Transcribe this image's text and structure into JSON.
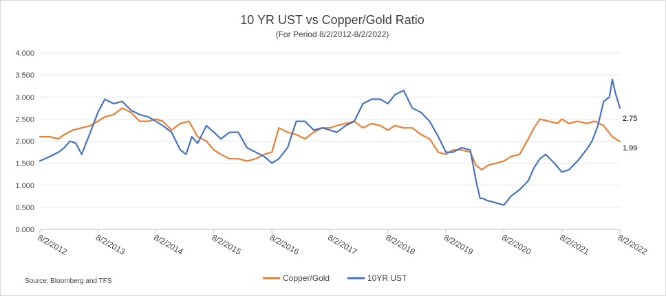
{
  "chart_data": {
    "type": "line",
    "title": "10 YR UST vs Copper/Gold Ratio",
    "subtitle": "(For Period 8/2/2012-8/2/2022)",
    "xlabel": "",
    "ylabel": "",
    "ylim": [
      0,
      4
    ],
    "y_ticks": [
      "0.000",
      "0.500",
      "1.000",
      "1.500",
      "2.000",
      "2.500",
      "3.000",
      "3.500",
      "4.000"
    ],
    "x_ticks": [
      "8/2/2012",
      "8/2/2013",
      "8/2/2014",
      "8/2/2015",
      "8/2/2016",
      "8/2/2017",
      "8/2/2018",
      "8/2/2019",
      "8/2/2020",
      "8/2/2021",
      "8/2/2022"
    ],
    "grid": "horizontal",
    "legend_position": "bottom",
    "source": "Source: Bloomberg and TFS",
    "end_labels": {
      "ust": "2.75",
      "copper_gold": "1.99"
    },
    "series": [
      {
        "name": "Copper/Gold",
        "color": "#ED7D31",
        "x": [
          2012.58,
          2012.75,
          2012.9,
          2013.0,
          2013.15,
          2013.3,
          2013.45,
          2013.58,
          2013.7,
          2013.85,
          2014.0,
          2014.15,
          2014.3,
          2014.45,
          2014.58,
          2014.7,
          2014.85,
          2015.0,
          2015.15,
          2015.3,
          2015.45,
          2015.58,
          2015.7,
          2015.85,
          2016.0,
          2016.15,
          2016.3,
          2016.45,
          2016.58,
          2016.7,
          2016.85,
          2017.0,
          2017.15,
          2017.3,
          2017.45,
          2017.58,
          2017.7,
          2017.85,
          2018.0,
          2018.15,
          2018.3,
          2018.45,
          2018.58,
          2018.7,
          2018.85,
          2019.0,
          2019.15,
          2019.3,
          2019.45,
          2019.58,
          2019.7,
          2019.85,
          2020.0,
          2020.1,
          2020.2,
          2020.3,
          2020.45,
          2020.58,
          2020.7,
          2020.85,
          2021.0,
          2021.1,
          2021.2,
          2021.35,
          2021.5,
          2021.58,
          2021.7,
          2021.85,
          2022.0,
          2022.15,
          2022.3,
          2022.45,
          2022.58
        ],
        "values": [
          2.1,
          2.1,
          2.05,
          2.15,
          2.25,
          2.3,
          2.35,
          2.45,
          2.55,
          2.6,
          2.75,
          2.65,
          2.45,
          2.45,
          2.5,
          2.45,
          2.25,
          2.4,
          2.45,
          2.1,
          2.0,
          1.8,
          1.7,
          1.6,
          1.6,
          1.55,
          1.6,
          1.7,
          1.75,
          2.3,
          2.2,
          2.15,
          2.05,
          2.2,
          2.3,
          2.3,
          2.35,
          2.4,
          2.45,
          2.3,
          2.4,
          2.35,
          2.25,
          2.35,
          2.3,
          2.3,
          2.15,
          2.05,
          1.75,
          1.7,
          1.8,
          1.8,
          1.75,
          1.45,
          1.35,
          1.45,
          1.5,
          1.55,
          1.65,
          1.7,
          2.05,
          2.3,
          2.5,
          2.45,
          2.4,
          2.5,
          2.4,
          2.45,
          2.4,
          2.45,
          2.35,
          2.1,
          1.99
        ]
      },
      {
        "name": "10YR UST",
        "color": "#4472C4",
        "x": [
          2012.58,
          2012.75,
          2012.9,
          2013.0,
          2013.1,
          2013.2,
          2013.3,
          2013.45,
          2013.58,
          2013.7,
          2013.85,
          2014.0,
          2014.15,
          2014.3,
          2014.45,
          2014.58,
          2014.7,
          2014.85,
          2015.0,
          2015.1,
          2015.2,
          2015.3,
          2015.45,
          2015.58,
          2015.7,
          2015.85,
          2016.0,
          2016.15,
          2016.3,
          2016.45,
          2016.58,
          2016.7,
          2016.85,
          2017.0,
          2017.15,
          2017.3,
          2017.45,
          2017.58,
          2017.7,
          2017.85,
          2018.0,
          2018.15,
          2018.3,
          2018.45,
          2018.58,
          2018.7,
          2018.85,
          2019.0,
          2019.15,
          2019.3,
          2019.45,
          2019.58,
          2019.7,
          2019.85,
          2020.0,
          2020.1,
          2020.17,
          2020.22,
          2020.3,
          2020.45,
          2020.58,
          2020.7,
          2020.85,
          2021.0,
          2021.1,
          2021.2,
          2021.3,
          2021.45,
          2021.58,
          2021.7,
          2021.85,
          2022.0,
          2022.1,
          2022.2,
          2022.3,
          2022.4,
          2022.45,
          2022.5,
          2022.58
        ],
        "values": [
          1.55,
          1.65,
          1.75,
          1.85,
          2.0,
          1.95,
          1.7,
          2.2,
          2.65,
          2.95,
          2.85,
          2.9,
          2.7,
          2.6,
          2.55,
          2.45,
          2.35,
          2.2,
          1.8,
          1.7,
          2.1,
          1.95,
          2.35,
          2.2,
          2.05,
          2.2,
          2.2,
          1.85,
          1.75,
          1.65,
          1.5,
          1.6,
          1.85,
          2.45,
          2.45,
          2.25,
          2.3,
          2.25,
          2.2,
          2.35,
          2.45,
          2.85,
          2.95,
          2.95,
          2.85,
          3.05,
          3.15,
          2.75,
          2.65,
          2.45,
          2.1,
          1.75,
          1.75,
          1.85,
          1.8,
          1.1,
          0.7,
          0.7,
          0.65,
          0.6,
          0.55,
          0.75,
          0.9,
          1.1,
          1.4,
          1.6,
          1.7,
          1.5,
          1.3,
          1.35,
          1.55,
          1.8,
          2.0,
          2.35,
          2.9,
          3.0,
          3.4,
          3.1,
          2.75
        ]
      }
    ]
  }
}
